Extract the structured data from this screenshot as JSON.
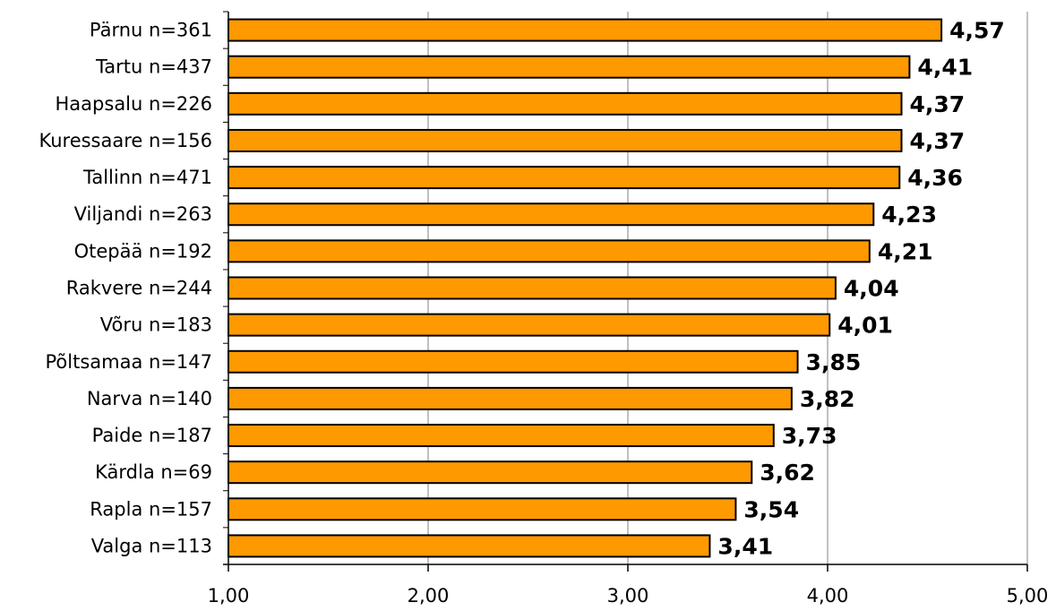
{
  "chart_data": {
    "type": "bar",
    "orientation": "horizontal",
    "categories": [
      "Pärnu n=361",
      "Tartu n=437",
      "Haapsalu n=226",
      "Kuressaare n=156",
      "Tallinn n=471",
      "Viljandi n=263",
      "Otepää n=192",
      "Rakvere n=244",
      "Võru n=183",
      "Põltsamaa n=147",
      "Narva n=140",
      "Paide n=187",
      "Kärdla n=69",
      "Rapla n=157",
      "Valga n=113"
    ],
    "values": [
      4.57,
      4.41,
      4.37,
      4.37,
      4.36,
      4.23,
      4.21,
      4.04,
      4.01,
      3.85,
      3.82,
      3.73,
      3.62,
      3.54,
      3.41
    ],
    "value_labels": [
      "4,57",
      "4,41",
      "4,37",
      "4,37",
      "4,36",
      "4,23",
      "4,21",
      "4,04",
      "4,01",
      "3,85",
      "3,82",
      "3,73",
      "3,62",
      "3,54",
      "3,41"
    ],
    "xlim": [
      1,
      5
    ],
    "x_ticks": [
      1,
      2,
      3,
      4,
      5
    ],
    "x_tick_labels": [
      "1,00",
      "2,00",
      "3,00",
      "4,00",
      "5,00"
    ],
    "grid": "vertical",
    "colors": {
      "bar_fill": "#FF9900",
      "bar_stroke": "#000000",
      "grid": "#808080",
      "axis": "#000000"
    }
  }
}
